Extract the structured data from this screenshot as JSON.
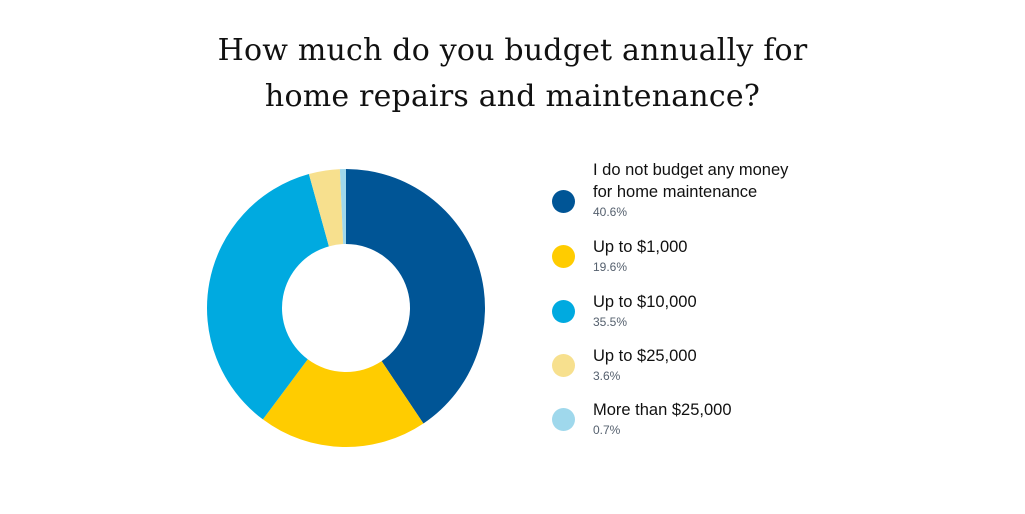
{
  "chart_data": {
    "type": "pie",
    "subtype": "donut",
    "title": "How much do you budget annually for home repairs and maintenance?",
    "title_lines": [
      "How much do you budget annually for",
      "home repairs and maintenance?"
    ],
    "categories": [
      "I do not budget any money for home maintenance",
      "Up to $1,000",
      "Up to $10,000",
      "Up to $25,000",
      "More than $25,000"
    ],
    "values": [
      40.6,
      19.6,
      35.5,
      3.6,
      0.7
    ],
    "value_labels": [
      "40.6%",
      "19.6%",
      "35.5%",
      "3.6%",
      "0.7%"
    ],
    "colors": [
      "#005596",
      "#ffcc00",
      "#00aae0",
      "#f7e08e",
      "#9fd8ec"
    ],
    "start_angle": "12 o'clock",
    "direction": "clockwise",
    "legend_position": "right",
    "xlabel": "",
    "ylabel": ""
  },
  "legend": {
    "items": [
      {
        "label_lines": [
          "I do not budget any money",
          "for home maintenance"
        ],
        "pct": "40.6%",
        "color": "#005596"
      },
      {
        "label_lines": [
          "Up to $1,000"
        ],
        "pct": "19.6%",
        "color": "#ffcc00"
      },
      {
        "label_lines": [
          "Up to $10,000"
        ],
        "pct": "35.5%",
        "color": "#00aae0"
      },
      {
        "label_lines": [
          "Up to $25,000"
        ],
        "pct": "3.6%",
        "color": "#f7e08e"
      },
      {
        "label_lines": [
          "More than $25,000"
        ],
        "pct": "0.7%",
        "color": "#9fd8ec"
      }
    ]
  }
}
